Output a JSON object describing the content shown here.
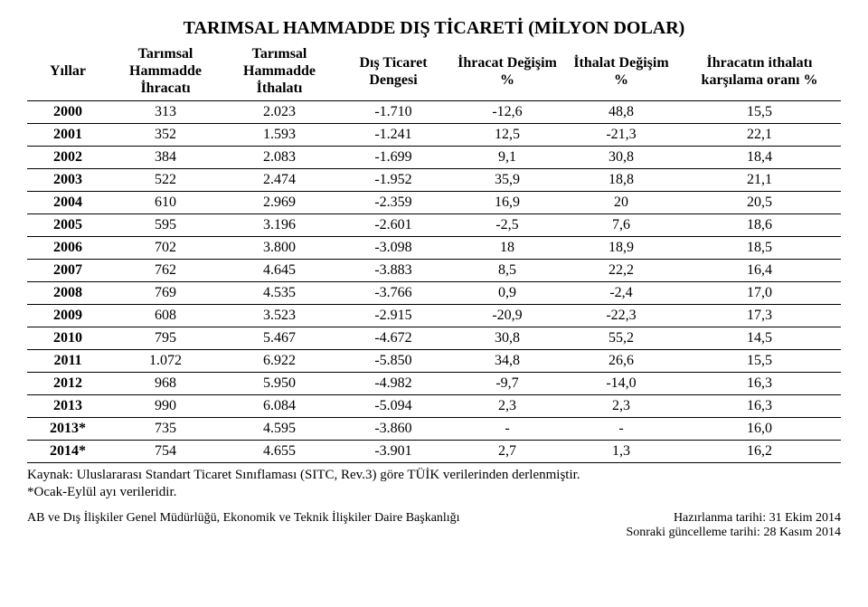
{
  "title": "TARIMSAL HAMMADDE DIŞ TİCARETİ (MİLYON DOLAR)",
  "columns": [
    "Yıllar",
    "Tarımsal Hammadde İhracatı",
    "Tarımsal Hammadde İthalatı",
    "Dış Ticaret Dengesi",
    "İhracat Değişim %",
    "İthalat Değişim %",
    "İhracatın ithalatı karşılama oranı %"
  ],
  "rows": [
    [
      "2000",
      "313",
      "2.023",
      "-1.710",
      "-12,6",
      "48,8",
      "15,5"
    ],
    [
      "2001",
      "352",
      "1.593",
      "-1.241",
      "12,5",
      "-21,3",
      "22,1"
    ],
    [
      "2002",
      "384",
      "2.083",
      "-1.699",
      "9,1",
      "30,8",
      "18,4"
    ],
    [
      "2003",
      "522",
      "2.474",
      "-1.952",
      "35,9",
      "18,8",
      "21,1"
    ],
    [
      "2004",
      "610",
      "2.969",
      "-2.359",
      "16,9",
      "20",
      "20,5"
    ],
    [
      "2005",
      "595",
      "3.196",
      "-2.601",
      "-2,5",
      "7,6",
      "18,6"
    ],
    [
      "2006",
      "702",
      "3.800",
      "-3.098",
      "18",
      "18,9",
      "18,5"
    ],
    [
      "2007",
      "762",
      "4.645",
      "-3.883",
      "8,5",
      "22,2",
      "16,4"
    ],
    [
      "2008",
      "769",
      "4.535",
      "-3.766",
      "0,9",
      "-2,4",
      "17,0"
    ],
    [
      "2009",
      "608",
      "3.523",
      "-2.915",
      "-20,9",
      "-22,3",
      "17,3"
    ],
    [
      "2010",
      "795",
      "5.467",
      "-4.672",
      "30,8",
      "55,2",
      "14,5"
    ],
    [
      "2011",
      "1.072",
      "6.922",
      "-5.850",
      "34,8",
      "26,6",
      "15,5"
    ],
    [
      "2012",
      "968",
      "5.950",
      "-4.982",
      "-9,7",
      "-14,0",
      "16,3"
    ],
    [
      "2013",
      "990",
      "6.084",
      "-5.094",
      "2,3",
      "2,3",
      "16,3"
    ],
    [
      "2013*",
      "735",
      "4.595",
      "-3.860",
      "-",
      "-",
      "16,0"
    ],
    [
      "2014*",
      "754",
      "4.655",
      "-3.901",
      "2,7",
      "1,3",
      "16,2"
    ]
  ],
  "source_line1": "Kaynak: Uluslararası Standart Ticaret Sınıflaması (SITC, Rev.3) göre TÜİK verilerinden derlenmiştir.",
  "source_line2": "*Ocak-Eylül ayı verileridir.",
  "footer_left": "AB ve Dış İlişkiler Genel Müdürlüğü, Ekonomik ve Teknik İlişkiler Daire Başkanlığı",
  "footer_right_line1": "Hazırlanma tarihi: 31 Ekim 2014",
  "footer_right_line2": "Sonraki güncelleme tarihi: 28 Kasım 2014"
}
